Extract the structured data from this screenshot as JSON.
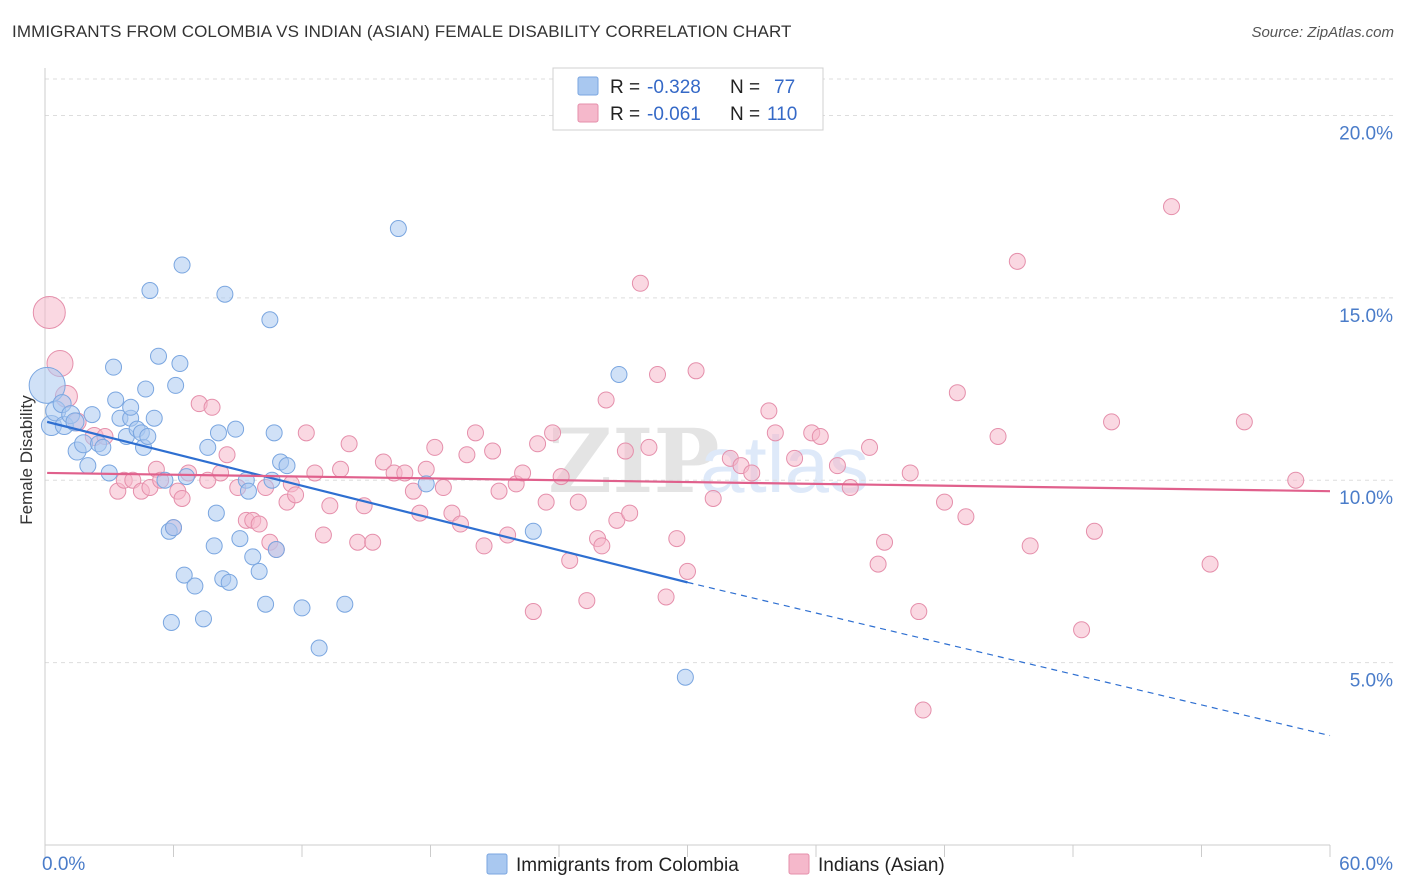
{
  "title": "IMMIGRANTS FROM COLOMBIA VS INDIAN (ASIAN) FEMALE DISABILITY CORRELATION CHART",
  "source": "Source: ZipAtlas.com",
  "watermark": {
    "zip": "ZIP",
    "atlas": "atlas"
  },
  "colors": {
    "blue_fill": "#a9c8f0",
    "blue_stroke": "#7aa6e0",
    "blue_line": "#2e6fd1",
    "pink_fill": "#f5b8cb",
    "pink_stroke": "#e58fab",
    "pink_line": "#e0608c",
    "tick_text": "#4a7cc9",
    "grid": "#dddddd"
  },
  "legend": {
    "rows": [
      {
        "r_label": "R =",
        "r_value": "-0.328",
        "n_label": "N =",
        "n_value": "77"
      },
      {
        "r_label": "R =",
        "r_value": "-0.061",
        "n_label": "N =",
        "n_value": "110"
      }
    ]
  },
  "bottom_legend": [
    "Immigrants from Colombia",
    "Indians (Asian)"
  ],
  "chart_data": {
    "type": "scatter",
    "title": "IMMIGRANTS FROM COLOMBIA VS INDIAN (ASIAN) FEMALE DISABILITY CORRELATION CHART",
    "xlabel": "",
    "ylabel": "Female Disability",
    "xlim": [
      0,
      60
    ],
    "ylim": [
      0,
      21
    ],
    "x_tick_labels": [
      "0.0%",
      "60.0%"
    ],
    "y_ticks": [
      5,
      10,
      15,
      20
    ],
    "y_tick_labels": [
      "5.0%",
      "10.0%",
      "15.0%",
      "20.0%"
    ],
    "grid": "horizontal dashed",
    "legend_position": "top-center",
    "series": [
      {
        "name": "Immigrants from Colombia",
        "color": "#a9c8f0",
        "R": -0.328,
        "N": 77,
        "trend": {
          "x": [
            0.1,
            30.0
          ],
          "y": [
            11.6,
            7.2
          ],
          "extended_to": [
            60.0,
            3.0
          ]
        },
        "points": [
          [
            0.1,
            12.6,
            18
          ],
          [
            0.3,
            11.5,
            10
          ],
          [
            0.5,
            11.9,
            10
          ],
          [
            0.8,
            12.1,
            9
          ],
          [
            0.9,
            11.5,
            9
          ],
          [
            1.2,
            11.8,
            9
          ],
          [
            1.4,
            11.6,
            9
          ],
          [
            1.5,
            10.8,
            9
          ],
          [
            1.8,
            11.0,
            9
          ],
          [
            2.0,
            10.4,
            8
          ],
          [
            2.2,
            11.8,
            8
          ],
          [
            2.5,
            11.0,
            8
          ],
          [
            2.7,
            10.9,
            8
          ],
          [
            3.0,
            10.2,
            8
          ],
          [
            3.2,
            13.1,
            8
          ],
          [
            3.3,
            12.2,
            8
          ],
          [
            3.5,
            11.7,
            8
          ],
          [
            3.8,
            11.2,
            8
          ],
          [
            4.0,
            11.7,
            8
          ],
          [
            4.0,
            12.0,
            8
          ],
          [
            4.3,
            11.4,
            8
          ],
          [
            4.5,
            11.3,
            8
          ],
          [
            4.6,
            10.9,
            8
          ],
          [
            4.8,
            11.2,
            8
          ],
          [
            4.7,
            12.5,
            8
          ],
          [
            4.9,
            15.2,
            8
          ],
          [
            5.1,
            11.7,
            8
          ],
          [
            5.3,
            13.4,
            8
          ],
          [
            5.6,
            10.0,
            8
          ],
          [
            5.8,
            8.6,
            8
          ],
          [
            5.9,
            6.1,
            8
          ],
          [
            6.0,
            8.7,
            8
          ],
          [
            6.1,
            12.6,
            8
          ],
          [
            6.3,
            13.2,
            8
          ],
          [
            6.4,
            15.9,
            8
          ],
          [
            6.5,
            7.4,
            8
          ],
          [
            6.6,
            10.1,
            8
          ],
          [
            7.0,
            7.1,
            8
          ],
          [
            7.4,
            6.2,
            8
          ],
          [
            7.6,
            10.9,
            8
          ],
          [
            7.9,
            8.2,
            8
          ],
          [
            8.0,
            9.1,
            8
          ],
          [
            8.1,
            11.3,
            8
          ],
          [
            8.3,
            7.3,
            8
          ],
          [
            8.4,
            15.1,
            8
          ],
          [
            8.6,
            7.2,
            8
          ],
          [
            8.9,
            11.4,
            8
          ],
          [
            9.1,
            8.4,
            8
          ],
          [
            9.4,
            10.0,
            8
          ],
          [
            9.5,
            9.7,
            8
          ],
          [
            9.7,
            7.9,
            8
          ],
          [
            10.0,
            7.5,
            8
          ],
          [
            10.3,
            6.6,
            8
          ],
          [
            10.5,
            14.4,
            8
          ],
          [
            10.6,
            10.0,
            8
          ],
          [
            10.7,
            11.3,
            8
          ],
          [
            10.8,
            8.1,
            8
          ],
          [
            11.0,
            10.5,
            8
          ],
          [
            11.3,
            10.4,
            8
          ],
          [
            12.0,
            6.5,
            8
          ],
          [
            12.8,
            5.4,
            8
          ],
          [
            14.0,
            6.6,
            8
          ],
          [
            16.5,
            16.9,
            8
          ],
          [
            17.8,
            9.9,
            8
          ],
          [
            22.8,
            8.6,
            8
          ],
          [
            26.8,
            12.9,
            8
          ],
          [
            29.9,
            4.6,
            8
          ]
        ]
      },
      {
        "name": "Indians (Asian)",
        "color": "#f5b8cb",
        "R": -0.061,
        "N": 110,
        "trend": {
          "x": [
            0.1,
            60.0
          ],
          "y": [
            10.2,
            9.7
          ]
        },
        "points": [
          [
            0.2,
            14.6,
            16
          ],
          [
            0.7,
            13.2,
            13
          ],
          [
            1.0,
            12.3,
            11
          ],
          [
            1.5,
            11.6,
            9
          ],
          [
            2.3,
            11.2,
            9
          ],
          [
            2.8,
            11.2,
            8
          ],
          [
            3.4,
            9.7,
            8
          ],
          [
            3.7,
            10.0,
            8
          ],
          [
            4.1,
            10.0,
            8
          ],
          [
            4.5,
            9.7,
            8
          ],
          [
            4.9,
            9.8,
            8
          ],
          [
            5.2,
            10.3,
            8
          ],
          [
            5.4,
            10.0,
            8
          ],
          [
            6.0,
            8.7,
            8
          ],
          [
            6.2,
            9.7,
            8
          ],
          [
            6.4,
            9.5,
            8
          ],
          [
            6.7,
            10.2,
            8
          ],
          [
            7.2,
            12.1,
            8
          ],
          [
            7.6,
            10.0,
            8
          ],
          [
            7.8,
            12.0,
            8
          ],
          [
            8.2,
            10.2,
            8
          ],
          [
            8.5,
            10.7,
            8
          ],
          [
            9.0,
            9.8,
            8
          ],
          [
            9.4,
            8.9,
            8
          ],
          [
            9.7,
            8.9,
            8
          ],
          [
            10.0,
            8.8,
            8
          ],
          [
            10.3,
            9.8,
            8
          ],
          [
            10.5,
            8.3,
            8
          ],
          [
            10.8,
            8.1,
            8
          ],
          [
            11.3,
            9.4,
            8
          ],
          [
            11.5,
            9.9,
            8
          ],
          [
            11.7,
            9.6,
            8
          ],
          [
            12.2,
            11.3,
            8
          ],
          [
            12.6,
            10.2,
            8
          ],
          [
            13.0,
            8.5,
            8
          ],
          [
            13.3,
            9.3,
            8
          ],
          [
            13.8,
            10.3,
            8
          ],
          [
            14.2,
            11.0,
            8
          ],
          [
            14.6,
            8.3,
            8
          ],
          [
            14.9,
            9.3,
            8
          ],
          [
            15.3,
            8.3,
            8
          ],
          [
            15.8,
            10.5,
            8
          ],
          [
            16.3,
            10.2,
            8
          ],
          [
            16.8,
            10.2,
            8
          ],
          [
            17.2,
            9.7,
            8
          ],
          [
            17.5,
            9.1,
            8
          ],
          [
            17.8,
            10.3,
            8
          ],
          [
            18.2,
            10.9,
            8
          ],
          [
            18.6,
            9.8,
            8
          ],
          [
            19.0,
            9.1,
            8
          ],
          [
            19.4,
            8.8,
            8
          ],
          [
            19.7,
            10.7,
            8
          ],
          [
            20.1,
            11.3,
            8
          ],
          [
            20.5,
            8.2,
            8
          ],
          [
            20.9,
            10.8,
            8
          ],
          [
            21.2,
            9.7,
            8
          ],
          [
            21.6,
            8.5,
            8
          ],
          [
            22.0,
            9.9,
            8
          ],
          [
            22.3,
            10.2,
            8
          ],
          [
            22.8,
            6.4,
            8
          ],
          [
            23.0,
            11.0,
            8
          ],
          [
            23.4,
            9.4,
            8
          ],
          [
            23.7,
            11.3,
            8
          ],
          [
            24.1,
            10.1,
            8
          ],
          [
            24.5,
            7.8,
            8
          ],
          [
            24.9,
            9.4,
            8
          ],
          [
            25.3,
            6.7,
            8
          ],
          [
            25.8,
            8.4,
            8
          ],
          [
            26.0,
            8.2,
            8
          ],
          [
            26.2,
            12.2,
            8
          ],
          [
            26.7,
            8.9,
            8
          ],
          [
            27.1,
            10.8,
            8
          ],
          [
            27.3,
            9.1,
            8
          ],
          [
            27.8,
            15.4,
            8
          ],
          [
            28.2,
            10.9,
            8
          ],
          [
            28.6,
            12.9,
            8
          ],
          [
            29.0,
            6.8,
            8
          ],
          [
            29.5,
            8.4,
            8
          ],
          [
            30.0,
            7.5,
            8
          ],
          [
            30.4,
            13.0,
            8
          ],
          [
            31.2,
            9.5,
            8
          ],
          [
            32.0,
            10.6,
            8
          ],
          [
            32.5,
            10.4,
            8
          ],
          [
            33.0,
            10.2,
            8
          ],
          [
            33.8,
            11.9,
            8
          ],
          [
            34.1,
            11.3,
            8
          ],
          [
            35.0,
            10.6,
            8
          ],
          [
            35.8,
            11.3,
            8
          ],
          [
            36.2,
            11.2,
            8
          ],
          [
            37.0,
            10.4,
            8
          ],
          [
            37.6,
            9.8,
            8
          ],
          [
            38.5,
            10.9,
            8
          ],
          [
            38.9,
            7.7,
            8
          ],
          [
            39.2,
            8.3,
            8
          ],
          [
            40.4,
            10.2,
            8
          ],
          [
            40.8,
            6.4,
            8
          ],
          [
            41.0,
            3.7,
            8
          ],
          [
            42.0,
            9.4,
            8
          ],
          [
            42.6,
            12.4,
            8
          ],
          [
            43.0,
            9.0,
            8
          ],
          [
            44.5,
            11.2,
            8
          ],
          [
            45.4,
            16.0,
            8
          ],
          [
            46.0,
            8.2,
            8
          ],
          [
            48.4,
            5.9,
            8
          ],
          [
            49.0,
            8.6,
            8
          ],
          [
            49.8,
            11.6,
            8
          ],
          [
            52.6,
            17.5,
            8
          ],
          [
            54.4,
            7.7,
            8
          ],
          [
            56.0,
            11.6,
            8
          ],
          [
            58.4,
            10.0,
            8
          ]
        ]
      }
    ]
  }
}
